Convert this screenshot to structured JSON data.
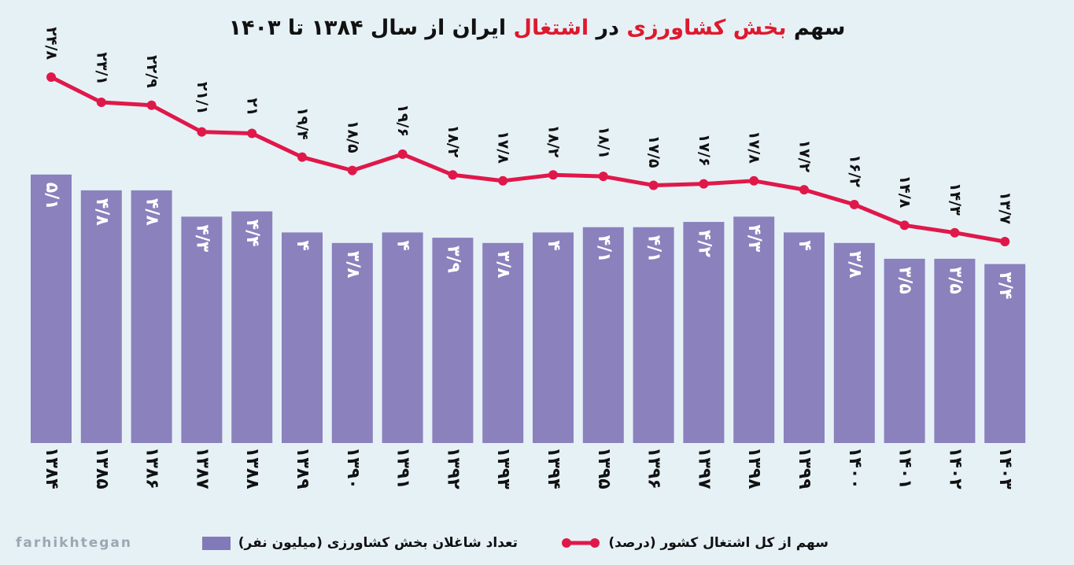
{
  "title": {
    "part1": "سهم ",
    "red1": "بخش کشاورزی",
    "part2": " در ",
    "red2": "اشتغال",
    "part3": " ایران از سال ۱۳۸۴ تا ۱۴۰۳"
  },
  "watermark": "farhikhtegan",
  "colors": {
    "bar": "#8279b8",
    "line": "#e0184a",
    "title_accent": "#e0182d",
    "background": "#e6f1f6"
  },
  "chart_data": {
    "type": "bar+line",
    "categories": [
      "۱۳۸۴",
      "۱۳۸۵",
      "۱۳۸۶",
      "۱۳۸۷",
      "۱۳۸۸",
      "۱۳۸۹",
      "۱۳۹۰",
      "۱۳۹۱",
      "۱۳۹۲",
      "۱۳۹۳",
      "۱۳۹۴",
      "۱۳۹۵",
      "۱۳۹۶",
      "۱۳۹۷",
      "۱۳۹۸",
      "۱۳۹۹",
      "۱۴۰۰",
      "۱۴۰۱",
      "۱۴۰۲",
      "۱۴۰۳"
    ],
    "series": [
      {
        "name": "تعداد شاغلان بخش کشاورزی (میلیون نفر)",
        "type": "bar",
        "values": [
          5.1,
          4.8,
          4.8,
          4.3,
          4.4,
          4,
          3.8,
          4,
          3.9,
          3.8,
          4,
          4.1,
          4.1,
          4.2,
          4.3,
          4,
          3.8,
          3.5,
          3.5,
          3.4
        ],
        "labels": [
          "۵/۱",
          "۴/۸",
          "۴/۸",
          "۴/۳",
          "۴/۴",
          "۴",
          "۳/۸",
          "۴",
          "۳/۹",
          "۳/۸",
          "۴",
          "۴/۱",
          "۴/۱",
          "۴/۲",
          "۴/۳",
          "۴",
          "۳/۸",
          "۳/۵",
          "۳/۵",
          "۳/۴"
        ]
      },
      {
        "name": "سهم از کل اشتغال کشور (درصد)",
        "type": "line",
        "values": [
          24.8,
          23.1,
          22.9,
          21.1,
          21,
          19.4,
          18.5,
          19.6,
          18.2,
          17.8,
          18.2,
          18.1,
          17.5,
          17.6,
          17.8,
          17.2,
          16.2,
          14.8,
          14.3,
          13.7
        ],
        "labels": [
          "۲۴/۸",
          "۲۳/۱",
          "۲۲/۹",
          "۲۱/۱",
          "۲۱",
          "۱۹/۴",
          "۱۸/۵",
          "۱۹/۶",
          "۱۸/۲",
          "۱۷/۸",
          "۱۸/۲",
          "۱۸/۱",
          "۱۷/۵",
          "۱۷/۶",
          "۱۷/۸",
          "۱۷/۲",
          "۱۶/۲",
          "۱۴/۸",
          "۱۴/۳",
          "۱۳/۷"
        ]
      }
    ],
    "legend_position": "bottom",
    "grid": false
  }
}
